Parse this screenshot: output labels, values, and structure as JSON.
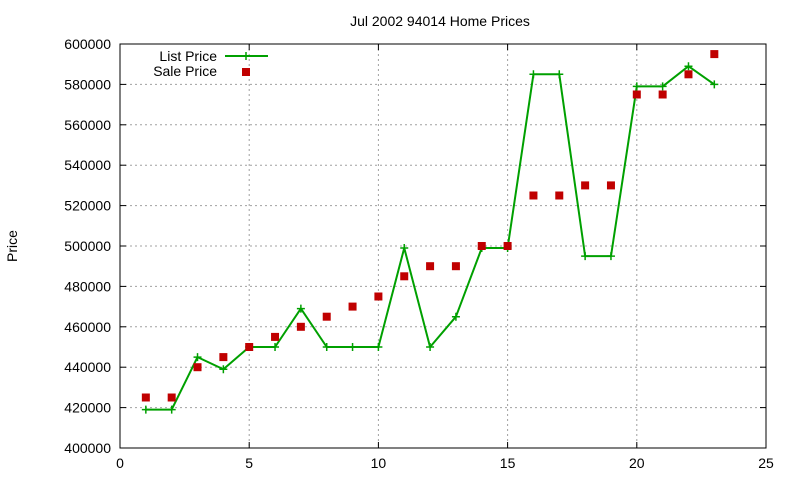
{
  "chart_data": {
    "type": "line",
    "title": "Jul 2002 94014 Home Prices",
    "ylabel": "Price",
    "xlim": [
      0,
      25
    ],
    "ylim": [
      400000,
      600000
    ],
    "xticks": [
      "0",
      "5",
      "10",
      "15",
      "20",
      "25"
    ],
    "yticks": [
      "400000",
      "420000",
      "440000",
      "460000",
      "480000",
      "500000",
      "520000",
      "540000",
      "560000",
      "580000",
      "600000"
    ],
    "grid": true,
    "legend_position": "top-left",
    "series": [
      {
        "name": "List Price",
        "kind": "line-points",
        "color": "#00a000",
        "x": [
          1,
          2,
          3,
          4,
          5,
          6,
          7,
          8,
          9,
          10,
          11,
          12,
          13,
          14,
          15,
          16,
          17,
          18,
          19,
          20,
          21,
          22,
          23
        ],
        "y": [
          419000,
          419000,
          445000,
          439000,
          450000,
          450000,
          469000,
          450000,
          450000,
          450000,
          499000,
          450000,
          465000,
          499000,
          499000,
          585000,
          585000,
          495000,
          495000,
          579000,
          579000,
          589000,
          580000
        ]
      },
      {
        "name": "Sale Price",
        "kind": "points",
        "color": "#c00000",
        "x": [
          1,
          2,
          3,
          4,
          5,
          6,
          7,
          8,
          9,
          10,
          11,
          12,
          13,
          14,
          15,
          16,
          17,
          18,
          19,
          20,
          21,
          22,
          23
        ],
        "y": [
          425000,
          425000,
          440000,
          445000,
          450000,
          455000,
          460000,
          465000,
          470000,
          475000,
          485000,
          490000,
          490000,
          500000,
          500000,
          525000,
          525000,
          530000,
          530000,
          575000,
          575000,
          585000,
          595000
        ]
      }
    ]
  }
}
